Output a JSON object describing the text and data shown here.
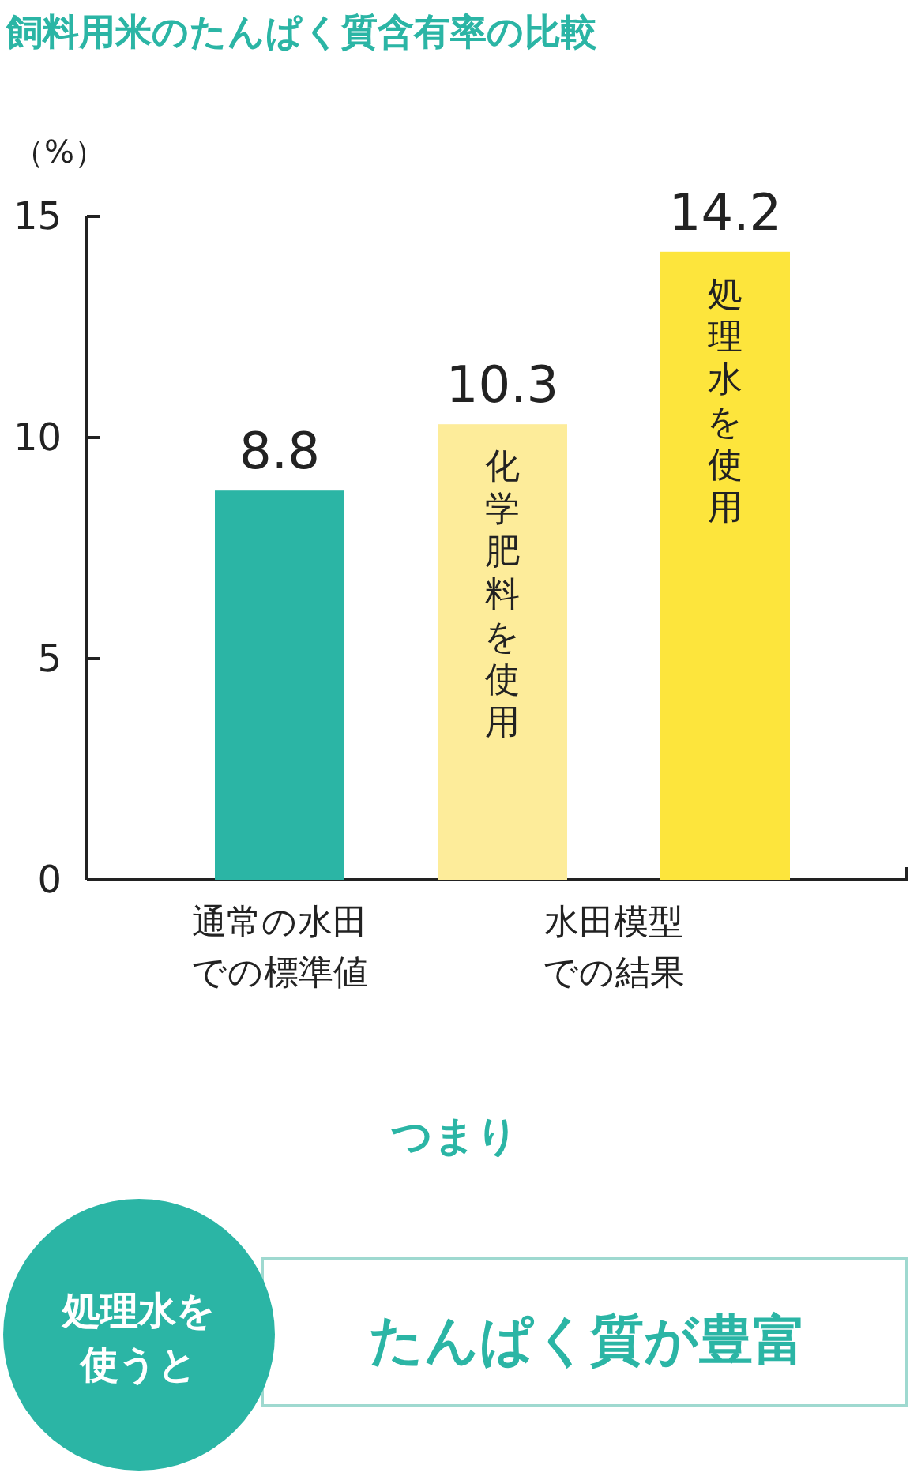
{
  "chart_data": {
    "type": "bar",
    "title": "飼料用米のたんぱく質含有率の比較",
    "ylabel": "（%）",
    "categories": [
      "通常の水田での標準値",
      "化学肥料を使用",
      "処理水を使用"
    ],
    "values": [
      8.8,
      10.3,
      14.2
    ],
    "colors": [
      "#2bb5a5",
      "#fdec9a",
      "#fde53c"
    ],
    "ylim": [
      0,
      15
    ],
    "yticks": [
      0,
      5,
      10,
      15
    ],
    "data_labels": true,
    "grid": false,
    "annotations": [
      "水田模型での結果",
      "つまり",
      "処理水を使うと",
      "たんぱく質が豊富"
    ]
  }
}
